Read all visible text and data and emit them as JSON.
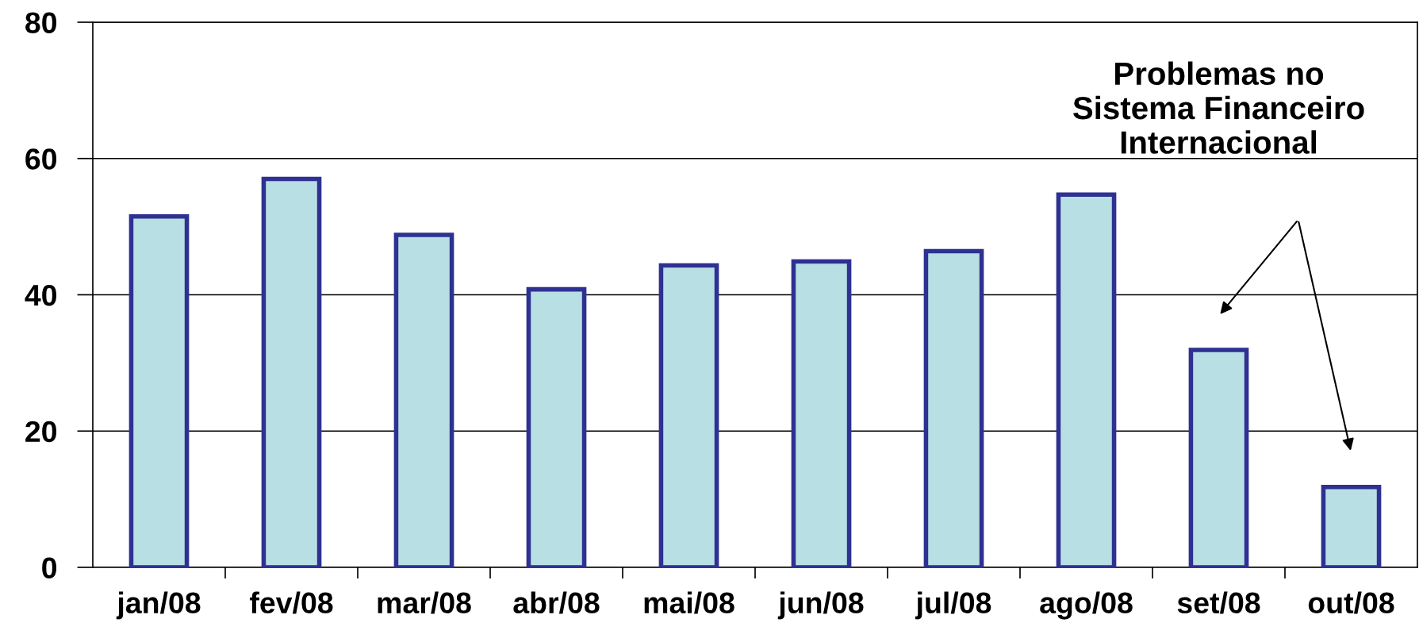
{
  "chart_data": {
    "type": "bar",
    "categories": [
      "jan/08",
      "fev/08",
      "mar/08",
      "abr/08",
      "mai/08",
      "jun/08",
      "jul/08",
      "ago/08",
      "set/08",
      "out/08"
    ],
    "values": [
      51.5,
      57,
      48.8,
      40.8,
      44.3,
      44.9,
      46.4,
      54.7,
      31.9,
      11.8
    ],
    "color": "#b8dfe3",
    "ylim": [
      0,
      80
    ],
    "yticks": [
      0,
      20,
      40,
      60,
      80
    ],
    "grid": "y",
    "annotations": [
      "Problemas no\nSistema Financeiro\nInternacional"
    ]
  }
}
